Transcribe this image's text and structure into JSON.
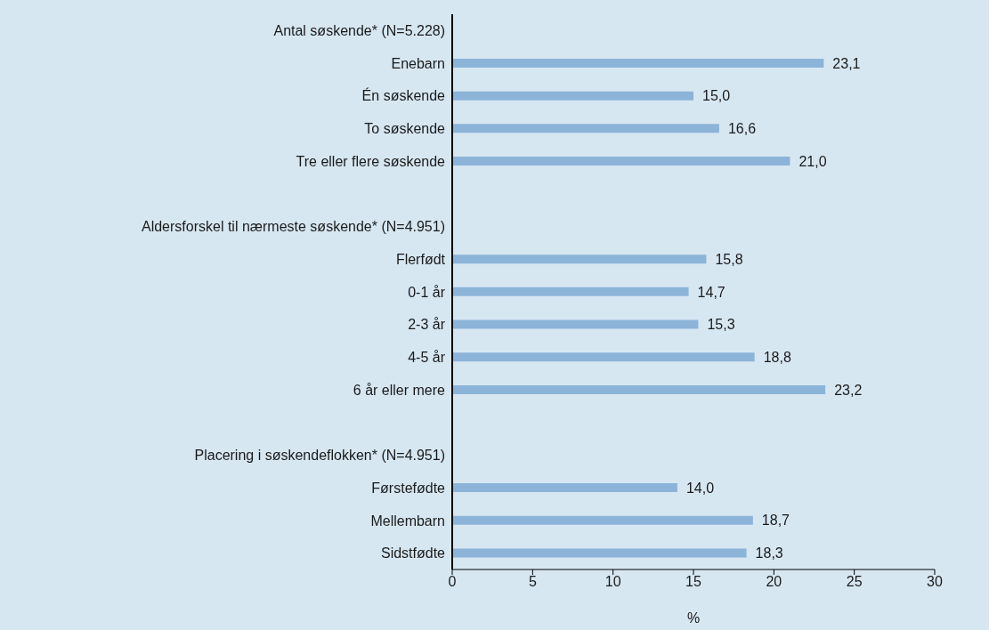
{
  "chart_data": {
    "type": "bar",
    "orientation": "horizontal",
    "categories": [
      "Antal søskende* (N=5.228)",
      "Enebarn",
      "Én søskende",
      "To søskende",
      "Tre eller flere søskende",
      null,
      "Aldersforskel til nærmeste søskende* (N=4.951)",
      "Flerfødt",
      "0-1 år",
      "2-3 år",
      "4-5 år",
      "6 år eller mere",
      null,
      "Placering i søskendeflokken* (N=4.951)",
      "Førstefødte",
      "Mellembarn",
      "Sidstfødte"
    ],
    "values": [
      null,
      23.1,
      15.0,
      16.6,
      21.0,
      null,
      null,
      15.8,
      14.7,
      15.3,
      18.8,
      23.2,
      null,
      null,
      14.0,
      18.7,
      18.3
    ],
    "value_labels": [
      null,
      "23,1",
      "15,0",
      "16,6",
      "21,0",
      null,
      null,
      "15,8",
      "14,7",
      "15,3",
      "18,8",
      "23,2",
      null,
      null,
      "14,0",
      "18,7",
      "18,3"
    ],
    "color": "#8cb4d9",
    "xlabel": "%",
    "xlim": [
      0,
      30
    ],
    "xticks": [
      0,
      5,
      10,
      15,
      20,
      25,
      30
    ],
    "grid": false,
    "legend": false
  }
}
